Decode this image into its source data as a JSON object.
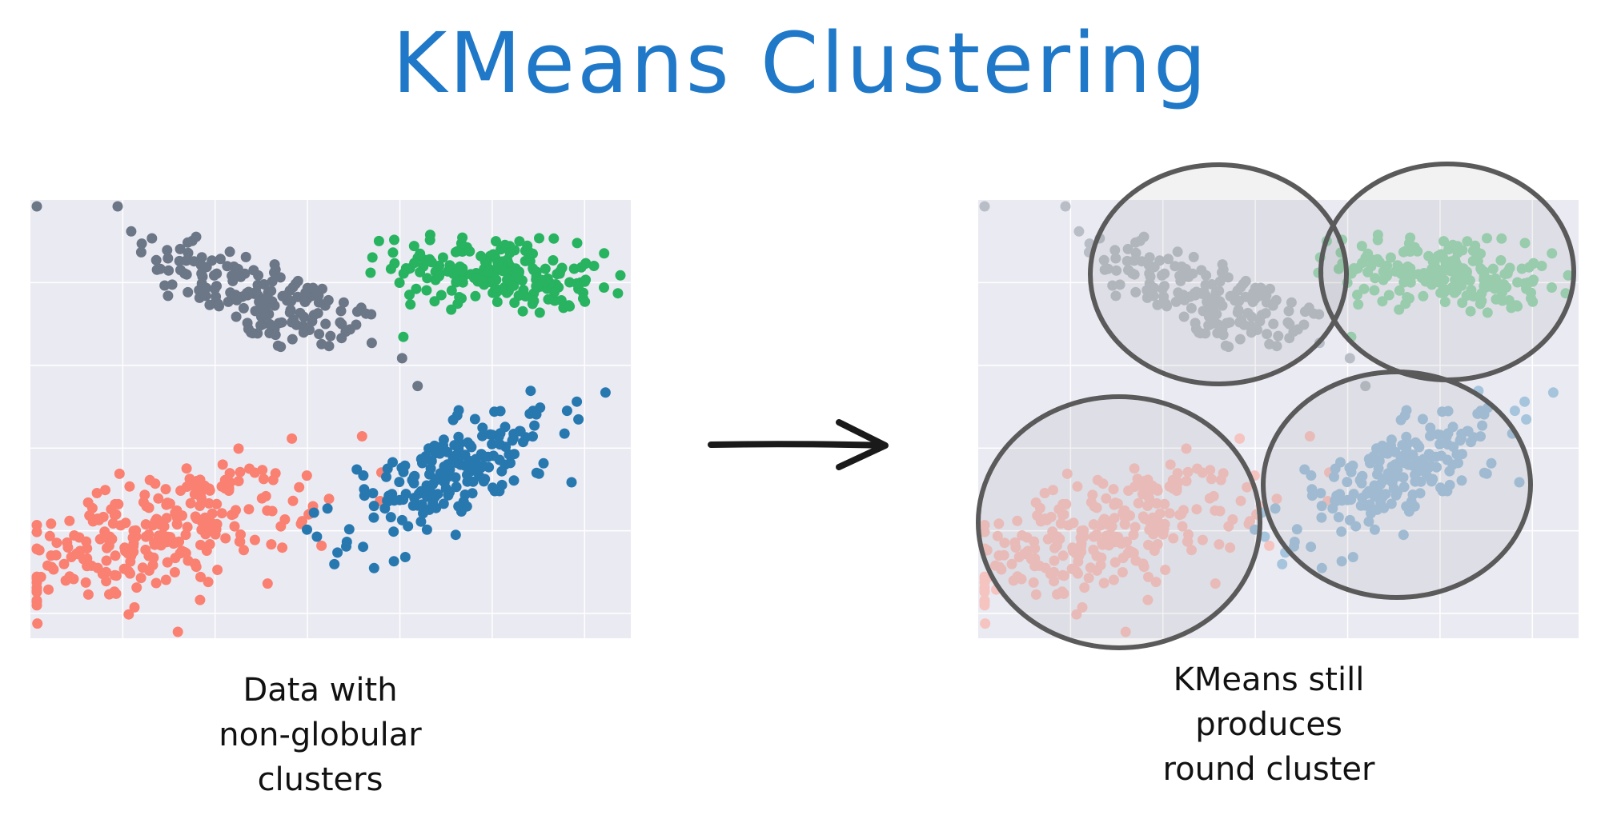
{
  "title": "KMeans Clustering",
  "captions": {
    "left": [
      "Data with",
      "non-globular",
      "clusters"
    ],
    "right": [
      "KMeans still",
      "produces",
      "round cluster"
    ]
  },
  "colors": {
    "title": "#1f78c8",
    "plot_bg": "#eaeaf2",
    "grid": "#ffffff",
    "circle": "#5a5a5a",
    "arrow": "#1a1a1a"
  },
  "chart_data": [
    {
      "type": "scatter",
      "grid": true,
      "series": [
        {
          "color": "#6b7686",
          "center": [
            0.38,
            0.78
          ],
          "spread": [
            0.12,
            0.045
          ],
          "angle_deg": -32,
          "count": 170
        },
        {
          "color": "#27b35f",
          "center": [
            0.78,
            0.83
          ],
          "spread": [
            0.085,
            0.04
          ],
          "angle_deg": -10,
          "count": 200
        },
        {
          "color": "#fa8072",
          "center": [
            0.22,
            0.24
          ],
          "spread": [
            0.13,
            0.06
          ],
          "angle_deg": 22,
          "count": 260
        },
        {
          "color": "#2878b0",
          "center": [
            0.7,
            0.37
          ],
          "spread": [
            0.11,
            0.045
          ],
          "angle_deg": 38,
          "count": 190
        }
      ]
    },
    {
      "type": "scatter",
      "grid": true,
      "faded": true,
      "series": [
        {
          "color": "#b9bec6",
          "center": [
            0.38,
            0.78
          ],
          "spread": [
            0.12,
            0.045
          ],
          "angle_deg": -32,
          "count": 170
        },
        {
          "color": "#9ed6b4",
          "center": [
            0.78,
            0.83
          ],
          "spread": [
            0.085,
            0.04
          ],
          "angle_deg": -10,
          "count": 200
        },
        {
          "color": "#f5c4c0",
          "center": [
            0.22,
            0.24
          ],
          "spread": [
            0.13,
            0.06
          ],
          "angle_deg": 22,
          "count": 260
        },
        {
          "color": "#a6c4dc",
          "center": [
            0.7,
            0.37
          ],
          "spread": [
            0.11,
            0.045
          ],
          "angle_deg": 38,
          "count": 190
        }
      ]
    }
  ]
}
